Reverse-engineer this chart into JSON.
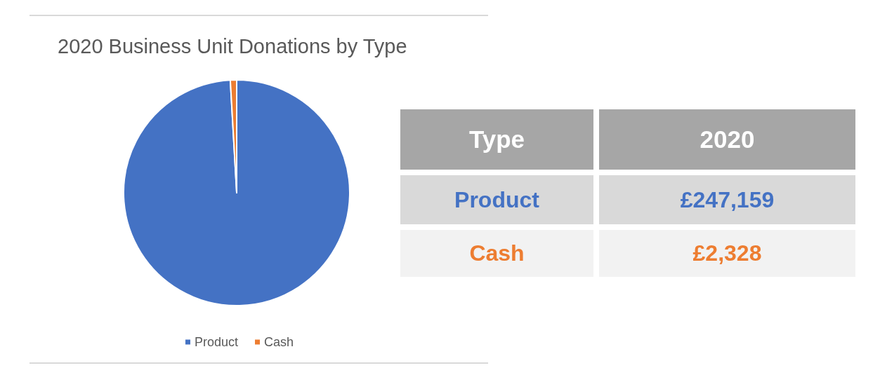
{
  "chart_data": [
    {
      "type": "pie",
      "title": "2020 Business Unit Donations by Type",
      "categories": [
        "Product",
        "Cash"
      ],
      "values": [
        99.1,
        0.9
      ],
      "colors": [
        "#4472c4",
        "#ed7d31"
      ],
      "legend": "bottom"
    },
    {
      "type": "other",
      "annotations": [
        "Type",
        "2020",
        "Product",
        "£247,159",
        "Cash",
        "£2,328"
      ]
    }
  ]
}
